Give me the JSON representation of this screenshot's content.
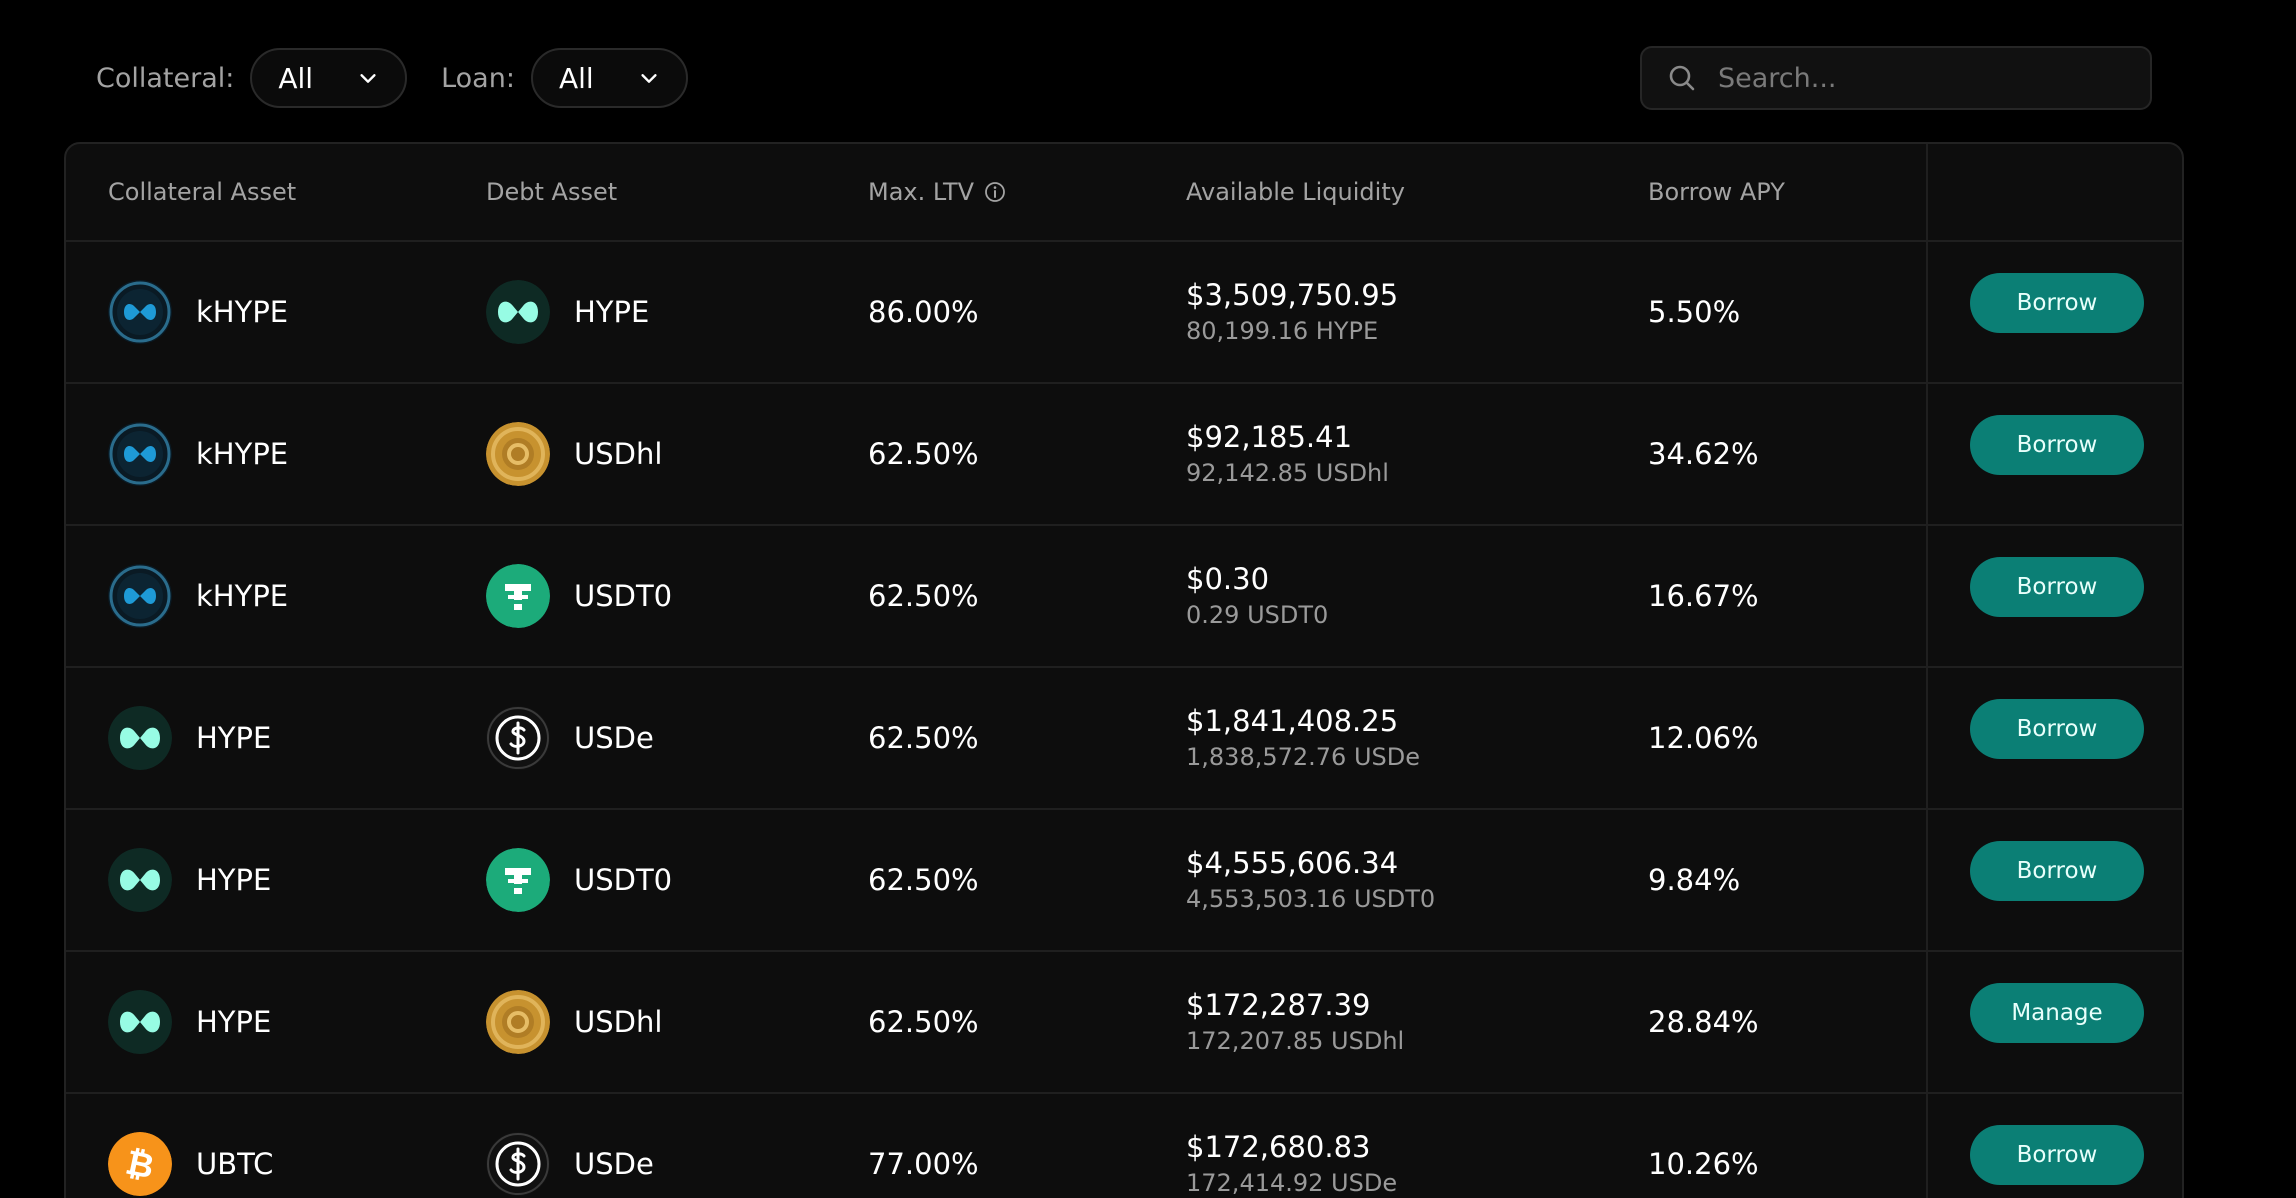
{
  "filters": {
    "collateral_label": "Collateral:",
    "collateral_value": "All",
    "loan_label": "Loan:",
    "loan_value": "All"
  },
  "search": {
    "placeholder": "Search..."
  },
  "table": {
    "headers": {
      "collateral": "Collateral Asset",
      "debt": "Debt Asset",
      "ltv": "Max. LTV",
      "liquidity": "Available Liquidity",
      "apy": "Borrow APY"
    },
    "rows": [
      {
        "collateral": "kHYPE",
        "collateral_icon": "khype-icon",
        "debt": "HYPE",
        "debt_icon": "hype-icon",
        "ltv": "86.00%",
        "liq_usd": "$3,509,750.95",
        "liq_amt": "80,199.16 HYPE",
        "apy": "5.50%",
        "action": "Borrow"
      },
      {
        "collateral": "kHYPE",
        "collateral_icon": "khype-icon",
        "debt": "USDhl",
        "debt_icon": "usdhl-icon",
        "ltv": "62.50%",
        "liq_usd": "$92,185.41",
        "liq_amt": "92,142.85 USDhl",
        "apy": "34.62%",
        "action": "Borrow"
      },
      {
        "collateral": "kHYPE",
        "collateral_icon": "khype-icon",
        "debt": "USDT0",
        "debt_icon": "usdt0-icon",
        "ltv": "62.50%",
        "liq_usd": "$0.30",
        "liq_amt": "0.29 USDT0",
        "apy": "16.67%",
        "action": "Borrow"
      },
      {
        "collateral": "HYPE",
        "collateral_icon": "hype-icon",
        "debt": "USDe",
        "debt_icon": "usde-icon",
        "ltv": "62.50%",
        "liq_usd": "$1,841,408.25",
        "liq_amt": "1,838,572.76 USDe",
        "apy": "12.06%",
        "action": "Borrow"
      },
      {
        "collateral": "HYPE",
        "collateral_icon": "hype-icon",
        "debt": "USDT0",
        "debt_icon": "usdt0-icon",
        "ltv": "62.50%",
        "liq_usd": "$4,555,606.34",
        "liq_amt": "4,553,503.16 USDT0",
        "apy": "9.84%",
        "action": "Borrow"
      },
      {
        "collateral": "HYPE",
        "collateral_icon": "hype-icon",
        "debt": "USDhl",
        "debt_icon": "usdhl-icon",
        "ltv": "62.50%",
        "liq_usd": "$172,287.39",
        "liq_amt": "172,207.85 USDhl",
        "apy": "28.84%",
        "action": "Manage"
      },
      {
        "collateral": "UBTC",
        "collateral_icon": "ubtc-icon",
        "debt": "USDe",
        "debt_icon": "usde-icon",
        "ltv": "77.00%",
        "liq_usd": "$172,680.83",
        "liq_amt": "172,414.92 USDe",
        "apy": "10.26%",
        "action": "Borrow"
      }
    ]
  },
  "colors": {
    "background": "#000000",
    "table_bg": "#0d0d0d",
    "accent_button": "#0b7f75",
    "muted_text": "#a3a3a3"
  }
}
